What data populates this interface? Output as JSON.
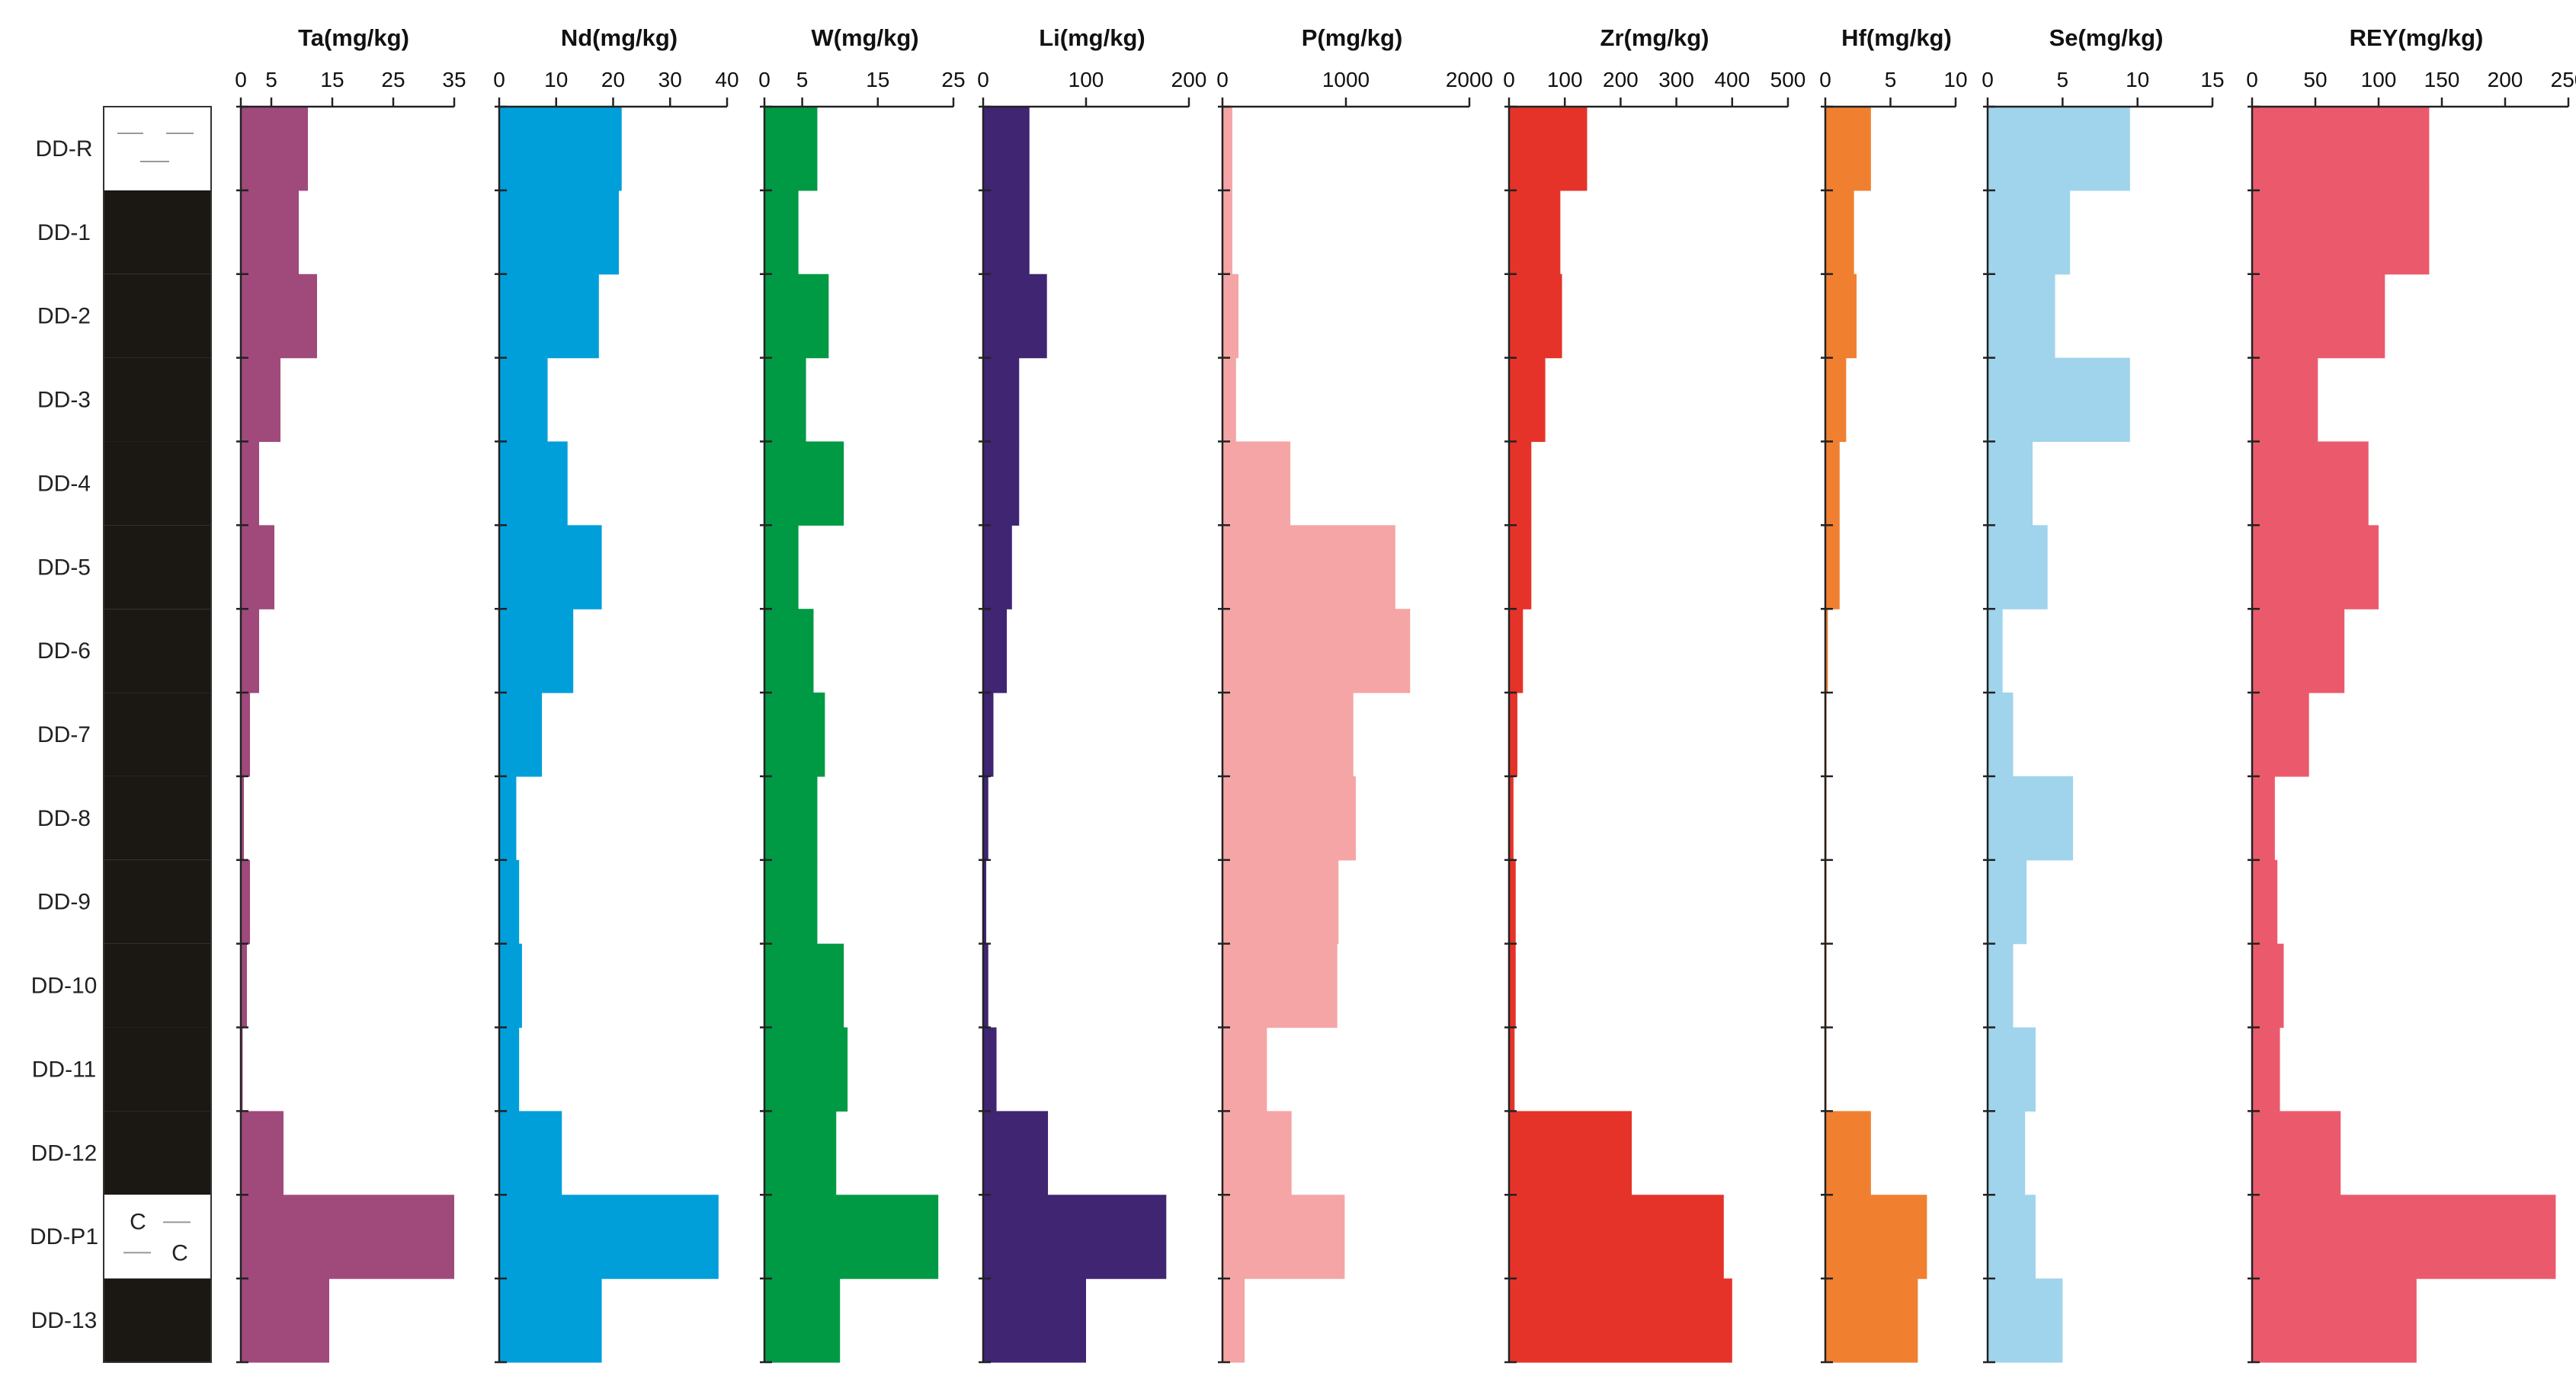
{
  "chart_data": {
    "type": "bar",
    "orientation": "horizontal-step-profile",
    "samples": [
      "DD-R",
      "DD-1",
      "DD-2",
      "DD-3",
      "DD-4",
      "DD-5",
      "DD-6",
      "DD-7",
      "DD-8",
      "DD-9",
      "DD-10",
      "DD-11",
      "DD-12",
      "DD-P1",
      "DD-13"
    ],
    "lithology": {
      "colors": {
        "mudstone": "#ffffff",
        "coal": "#1b1712",
        "boundary": "#333333"
      },
      "layers": [
        "mudstone",
        "coal",
        "coal",
        "coal",
        "coal",
        "coal",
        "coal",
        "coal",
        "coal",
        "coal",
        "coal",
        "coal",
        "coal",
        "carbonaceous-mudstone",
        "coal"
      ],
      "symbol_char": "C"
    },
    "panels": [
      {
        "name": "Ta(mg/kg)",
        "color": "#a04a7c",
        "xlim": [
          0,
          35
        ],
        "ticks": [
          "0",
          "5",
          "15",
          "25",
          "35"
        ],
        "tick_values": [
          0,
          5,
          15,
          25,
          35
        ],
        "values": [
          11,
          9.5,
          12.5,
          6.5,
          3,
          5.5,
          3,
          1.5,
          0.5,
          1.5,
          1,
          0.3,
          7,
          35,
          14.5
        ]
      },
      {
        "name": "Nd(mg/kg)",
        "color": "#009fda",
        "xlim": [
          0,
          40
        ],
        "ticks": [
          "0",
          "10",
          "20",
          "30",
          "40"
        ],
        "tick_values": [
          0,
          10,
          20,
          30,
          40
        ],
        "values": [
          21.5,
          21,
          17.5,
          8.5,
          12,
          18,
          13,
          7.5,
          3,
          3.5,
          4,
          3.5,
          11,
          38.5,
          18
        ]
      },
      {
        "name": "W(mg/kg)",
        "color": "#009944",
        "xlim": [
          0,
          25
        ],
        "ticks": [
          "0",
          "5",
          "15",
          "25"
        ],
        "tick_values": [
          0,
          5,
          15,
          25
        ],
        "values": [
          7,
          4.5,
          8.5,
          5.5,
          10.5,
          4.5,
          6.5,
          8,
          7,
          7,
          10.5,
          11,
          9.5,
          23,
          10
        ]
      },
      {
        "name": "Li(mg/kg)",
        "color": "#3f2572",
        "xlim": [
          0,
          200
        ],
        "ticks": [
          "0",
          "100",
          "200"
        ],
        "tick_values": [
          0,
          100,
          200
        ],
        "values": [
          45,
          45,
          62,
          35,
          35,
          28,
          23,
          10,
          5,
          3,
          5,
          13,
          63,
          178,
          100
        ]
      },
      {
        "name": "P(mg/kg)",
        "color": "#f5a5a5",
        "xlim": [
          0,
          2000
        ],
        "ticks": [
          "0",
          "1000",
          "2000"
        ],
        "tick_values": [
          0,
          1000,
          2000
        ],
        "values": [
          80,
          80,
          130,
          110,
          550,
          1400,
          1520,
          1060,
          1080,
          940,
          930,
          360,
          560,
          990,
          180
        ]
      },
      {
        "name": "Zr(mg/kg)",
        "color": "#e5332a",
        "xlim": [
          0,
          500
        ],
        "ticks": [
          "0",
          "100",
          "200",
          "300",
          "400",
          "500"
        ],
        "tick_values": [
          0,
          100,
          200,
          300,
          400,
          500
        ],
        "values": [
          140,
          92,
          95,
          65,
          40,
          40,
          25,
          15,
          8,
          12,
          12,
          10,
          220,
          385,
          400
        ]
      },
      {
        "name": "Hf(mg/kg)",
        "color": "#f08030",
        "xlim": [
          0,
          10
        ],
        "ticks": [
          "0",
          "5",
          "10"
        ],
        "tick_values": [
          0,
          5,
          10
        ],
        "values": [
          3.5,
          2.2,
          2.4,
          1.6,
          1.1,
          1.1,
          0.2,
          0.1,
          0.1,
          0.1,
          0.1,
          0.1,
          3.5,
          7.8,
          7.1
        ]
      },
      {
        "name": "Se(mg/kg)",
        "color": "#a0d4ec",
        "xlim": [
          0,
          15
        ],
        "ticks": [
          "0",
          "5",
          "10",
          "15"
        ],
        "tick_values": [
          0,
          5,
          10,
          15
        ],
        "values": [
          9.5,
          5.5,
          4.5,
          9.5,
          3,
          4,
          1,
          1.7,
          5.7,
          2.6,
          1.7,
          3.2,
          2.5,
          3.2,
          5
        ]
      },
      {
        "name": "REY(mg/kg)",
        "color": "#eb5a6c",
        "xlim": [
          0,
          250
        ],
        "ticks": [
          "0",
          "50",
          "100",
          "150",
          "200",
          "250"
        ],
        "tick_values": [
          0,
          50,
          100,
          150,
          200,
          250
        ],
        "values": [
          140,
          140,
          105,
          52,
          92,
          100,
          73,
          45,
          18,
          20,
          25,
          22,
          70,
          240,
          130
        ]
      }
    ]
  }
}
